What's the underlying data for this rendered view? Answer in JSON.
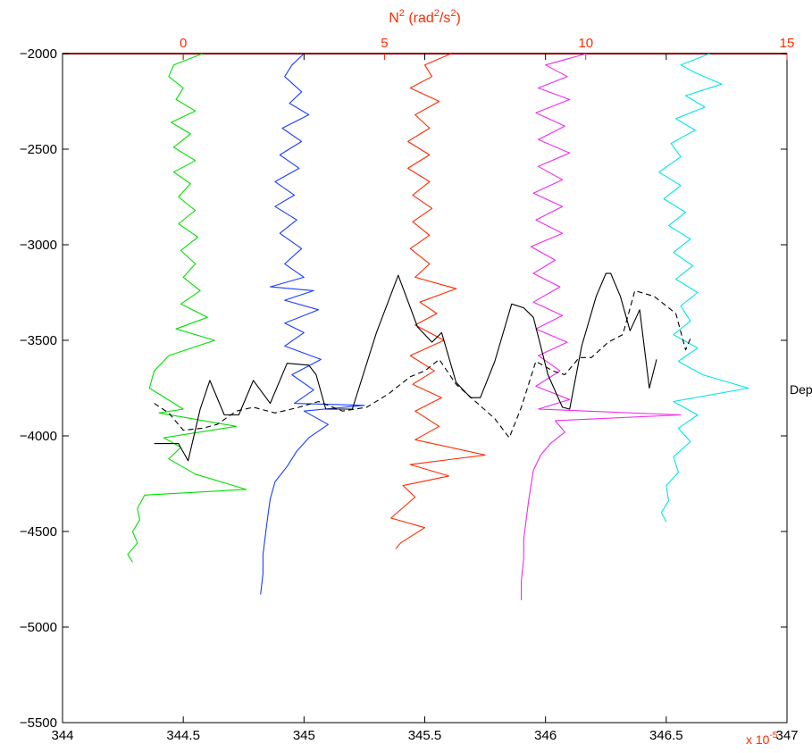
{
  "chart_data": {
    "type": "line",
    "top_axis": {
      "title_main": "N",
      "title_sup1": "2",
      "title_mid": " (rad",
      "title_sup2": "2",
      "title_mid2": "/s",
      "title_sup3": "2",
      "title_end": ")",
      "range": [
        -3,
        15
      ],
      "ticks": [
        0,
        5,
        10,
        15
      ],
      "tick_labels": [
        "0",
        "5",
        "10",
        "15"
      ],
      "color": "#ff2a00"
    },
    "bottom_axis": {
      "range": [
        344,
        347
      ],
      "ticks": [
        344,
        344.5,
        345,
        345.5,
        346,
        346.5,
        347
      ],
      "tick_labels": [
        "344",
        "344.5",
        "345",
        "345.5",
        "346",
        "346.5",
        "347"
      ],
      "exponent_label": "x 10",
      "exponent_sup": "-5",
      "exponent_color": "#ff2a00"
    },
    "left_axis": {
      "range": [
        -5500,
        -2000
      ],
      "ticks": [
        -5500,
        -5000,
        -4500,
        -4000,
        -3500,
        -3000,
        -2500,
        -2000
      ],
      "tick_labels": [
        "−5500",
        "−5000",
        "−4500",
        "−4000",
        "−3500",
        "−3000",
        "−2500",
        "−2000"
      ]
    },
    "right_axis": {
      "label": "Depth(m)"
    },
    "grid": false,
    "series": [
      {
        "color": "#00e000",
        "style": "solid",
        "points": [
          [
            344.58,
            -2000
          ],
          [
            344.46,
            -2060
          ],
          [
            344.44,
            -2120
          ],
          [
            344.5,
            -2180
          ],
          [
            344.47,
            -2240
          ],
          [
            344.55,
            -2300
          ],
          [
            344.45,
            -2360
          ],
          [
            344.53,
            -2420
          ],
          [
            344.46,
            -2490
          ],
          [
            344.55,
            -2560
          ],
          [
            344.46,
            -2620
          ],
          [
            344.53,
            -2680
          ],
          [
            344.48,
            -2750
          ],
          [
            344.55,
            -2820
          ],
          [
            344.48,
            -2890
          ],
          [
            344.56,
            -2960
          ],
          [
            344.49,
            -3030
          ],
          [
            344.55,
            -3100
          ],
          [
            344.5,
            -3170
          ],
          [
            344.57,
            -3240
          ],
          [
            344.49,
            -3310
          ],
          [
            344.6,
            -3380
          ],
          [
            344.47,
            -3440
          ],
          [
            344.63,
            -3500
          ],
          [
            344.44,
            -3580
          ],
          [
            344.38,
            -3660
          ],
          [
            344.36,
            -3750
          ],
          [
            344.5,
            -3860
          ],
          [
            344.4,
            -3880
          ],
          [
            344.72,
            -3950
          ],
          [
            344.42,
            -4010
          ],
          [
            344.49,
            -4060
          ],
          [
            344.44,
            -4120
          ],
          [
            344.55,
            -4200
          ],
          [
            344.76,
            -4280
          ],
          [
            344.34,
            -4310
          ],
          [
            344.31,
            -4380
          ],
          [
            344.32,
            -4440
          ],
          [
            344.29,
            -4500
          ],
          [
            344.31,
            -4560
          ],
          [
            344.27,
            -4620
          ],
          [
            344.29,
            -4660
          ]
        ]
      },
      {
        "color": "#1a3dff",
        "style": "solid",
        "points": [
          [
            345.0,
            -2000
          ],
          [
            344.95,
            -2060
          ],
          [
            344.92,
            -2120
          ],
          [
            344.99,
            -2200
          ],
          [
            344.94,
            -2260
          ],
          [
            345.02,
            -2320
          ],
          [
            344.91,
            -2390
          ],
          [
            344.99,
            -2460
          ],
          [
            344.9,
            -2530
          ],
          [
            344.98,
            -2600
          ],
          [
            344.88,
            -2670
          ],
          [
            344.96,
            -2740
          ],
          [
            344.88,
            -2800
          ],
          [
            344.97,
            -2870
          ],
          [
            344.9,
            -2940
          ],
          [
            344.99,
            -3020
          ],
          [
            344.92,
            -3100
          ],
          [
            345.0,
            -3170
          ],
          [
            344.86,
            -3220
          ],
          [
            345.04,
            -3240
          ],
          [
            344.92,
            -3290
          ],
          [
            345.06,
            -3340
          ],
          [
            344.92,
            -3410
          ],
          [
            345.0,
            -3460
          ],
          [
            344.92,
            -3530
          ],
          [
            345.07,
            -3600
          ],
          [
            344.95,
            -3680
          ],
          [
            345.04,
            -3760
          ],
          [
            344.96,
            -3830
          ],
          [
            345.25,
            -3840
          ],
          [
            345.0,
            -3870
          ],
          [
            345.1,
            -3940
          ],
          [
            345.02,
            -4010
          ],
          [
            344.97,
            -4080
          ],
          [
            344.93,
            -4160
          ],
          [
            344.88,
            -4240
          ],
          [
            344.86,
            -4330
          ],
          [
            344.85,
            -4420
          ],
          [
            344.84,
            -4520
          ],
          [
            344.83,
            -4620
          ],
          [
            344.83,
            -4720
          ],
          [
            344.82,
            -4830
          ]
        ]
      },
      {
        "color": "#ff2a00",
        "style": "solid",
        "points": [
          [
            345.61,
            -2000
          ],
          [
            345.5,
            -2060
          ],
          [
            345.53,
            -2120
          ],
          [
            345.44,
            -2180
          ],
          [
            345.56,
            -2250
          ],
          [
            345.46,
            -2320
          ],
          [
            345.52,
            -2390
          ],
          [
            345.43,
            -2460
          ],
          [
            345.52,
            -2530
          ],
          [
            345.43,
            -2600
          ],
          [
            345.52,
            -2670
          ],
          [
            345.45,
            -2740
          ],
          [
            345.53,
            -2810
          ],
          [
            345.45,
            -2880
          ],
          [
            345.52,
            -2950
          ],
          [
            345.44,
            -3020
          ],
          [
            345.52,
            -3100
          ],
          [
            345.46,
            -3170
          ],
          [
            345.63,
            -3230
          ],
          [
            345.48,
            -3300
          ],
          [
            345.55,
            -3360
          ],
          [
            345.46,
            -3420
          ],
          [
            345.58,
            -3500
          ],
          [
            345.44,
            -3580
          ],
          [
            345.54,
            -3660
          ],
          [
            345.45,
            -3730
          ],
          [
            345.57,
            -3800
          ],
          [
            345.46,
            -3870
          ],
          [
            345.56,
            -3950
          ],
          [
            345.46,
            -4020
          ],
          [
            345.75,
            -4100
          ],
          [
            345.44,
            -4150
          ],
          [
            345.6,
            -4210
          ],
          [
            345.41,
            -4260
          ],
          [
            345.46,
            -4320
          ],
          [
            345.36,
            -4430
          ],
          [
            345.5,
            -4480
          ],
          [
            345.4,
            -4560
          ],
          [
            345.38,
            -4590
          ]
        ]
      },
      {
        "color": "#ee2aee",
        "style": "solid",
        "points": [
          [
            346.17,
            -2000
          ],
          [
            346.0,
            -2060
          ],
          [
            346.09,
            -2120
          ],
          [
            345.97,
            -2180
          ],
          [
            346.1,
            -2240
          ],
          [
            345.96,
            -2310
          ],
          [
            346.08,
            -2380
          ],
          [
            345.97,
            -2450
          ],
          [
            346.1,
            -2520
          ],
          [
            345.97,
            -2590
          ],
          [
            346.07,
            -2660
          ],
          [
            345.95,
            -2730
          ],
          [
            346.07,
            -2800
          ],
          [
            345.96,
            -2870
          ],
          [
            346.07,
            -2940
          ],
          [
            345.94,
            -3010
          ],
          [
            346.04,
            -3080
          ],
          [
            345.95,
            -3150
          ],
          [
            346.06,
            -3220
          ],
          [
            345.95,
            -3300
          ],
          [
            346.07,
            -3370
          ],
          [
            345.96,
            -3440
          ],
          [
            346.09,
            -3510
          ],
          [
            345.97,
            -3580
          ],
          [
            346.06,
            -3660
          ],
          [
            345.96,
            -3740
          ],
          [
            346.1,
            -3810
          ],
          [
            345.97,
            -3860
          ],
          [
            346.56,
            -3890
          ],
          [
            346.04,
            -3920
          ],
          [
            346.08,
            -3980
          ],
          [
            346.02,
            -4040
          ],
          [
            345.98,
            -4100
          ],
          [
            345.95,
            -4180
          ],
          [
            345.94,
            -4260
          ],
          [
            345.93,
            -4340
          ],
          [
            345.92,
            -4440
          ],
          [
            345.91,
            -4540
          ],
          [
            345.91,
            -4640
          ],
          [
            345.9,
            -4760
          ],
          [
            345.9,
            -4860
          ]
        ]
      },
      {
        "color": "#00e5e5",
        "style": "solid",
        "points": [
          [
            346.68,
            -2000
          ],
          [
            346.56,
            -2060
          ],
          [
            346.62,
            -2100
          ],
          [
            346.73,
            -2160
          ],
          [
            346.58,
            -2220
          ],
          [
            346.66,
            -2280
          ],
          [
            346.54,
            -2340
          ],
          [
            346.62,
            -2400
          ],
          [
            346.52,
            -2470
          ],
          [
            346.56,
            -2540
          ],
          [
            346.47,
            -2620
          ],
          [
            346.56,
            -2690
          ],
          [
            346.49,
            -2760
          ],
          [
            346.58,
            -2830
          ],
          [
            346.51,
            -2900
          ],
          [
            346.6,
            -2970
          ],
          [
            346.53,
            -3040
          ],
          [
            346.61,
            -3110
          ],
          [
            346.54,
            -3180
          ],
          [
            346.63,
            -3250
          ],
          [
            346.56,
            -3320
          ],
          [
            346.6,
            -3400
          ],
          [
            346.53,
            -3470
          ],
          [
            346.63,
            -3540
          ],
          [
            346.55,
            -3610
          ],
          [
            346.65,
            -3680
          ],
          [
            346.84,
            -3750
          ],
          [
            346.53,
            -3820
          ],
          [
            346.63,
            -3890
          ],
          [
            346.55,
            -3960
          ],
          [
            346.6,
            -4030
          ],
          [
            346.53,
            -4110
          ],
          [
            346.55,
            -4190
          ],
          [
            346.5,
            -4260
          ],
          [
            346.51,
            -4340
          ],
          [
            346.48,
            -4400
          ],
          [
            346.5,
            -4450
          ]
        ]
      },
      {
        "color": "#000000",
        "style": "solid",
        "points": [
          [
            344.38,
            -4040
          ],
          [
            344.48,
            -4040
          ],
          [
            344.52,
            -4130
          ],
          [
            344.57,
            -3860
          ],
          [
            344.61,
            -3710
          ],
          [
            344.67,
            -3890
          ],
          [
            344.73,
            -3890
          ],
          [
            344.79,
            -3710
          ],
          [
            344.86,
            -3830
          ],
          [
            344.93,
            -3620
          ],
          [
            345.02,
            -3630
          ],
          [
            345.05,
            -3680
          ],
          [
            345.09,
            -3860
          ],
          [
            345.2,
            -3860
          ],
          [
            345.3,
            -3460
          ],
          [
            345.39,
            -3160
          ],
          [
            345.47,
            -3430
          ],
          [
            345.53,
            -3510
          ],
          [
            345.57,
            -3460
          ],
          [
            345.63,
            -3720
          ],
          [
            345.69,
            -3800
          ],
          [
            345.73,
            -3800
          ],
          [
            345.79,
            -3610
          ],
          [
            345.86,
            -3310
          ],
          [
            345.91,
            -3330
          ],
          [
            345.95,
            -3380
          ],
          [
            346.01,
            -3680
          ],
          [
            346.07,
            -3850
          ],
          [
            346.1,
            -3860
          ],
          [
            346.15,
            -3530
          ],
          [
            346.21,
            -3270
          ],
          [
            346.25,
            -3150
          ],
          [
            346.27,
            -3150
          ],
          [
            346.31,
            -3270
          ],
          [
            346.35,
            -3450
          ],
          [
            346.39,
            -3340
          ],
          [
            346.43,
            -3750
          ],
          [
            346.46,
            -3600
          ]
        ]
      },
      {
        "color": "#000000",
        "style": "dashed",
        "points": [
          [
            344.38,
            -3830
          ],
          [
            344.44,
            -3880
          ],
          [
            344.5,
            -3970
          ],
          [
            344.58,
            -3960
          ],
          [
            344.64,
            -3940
          ],
          [
            344.72,
            -3870
          ],
          [
            344.79,
            -3850
          ],
          [
            344.88,
            -3880
          ],
          [
            344.98,
            -3850
          ],
          [
            345.06,
            -3820
          ],
          [
            345.16,
            -3870
          ],
          [
            345.26,
            -3850
          ],
          [
            345.35,
            -3780
          ],
          [
            345.44,
            -3690
          ],
          [
            345.5,
            -3660
          ],
          [
            345.56,
            -3600
          ],
          [
            345.63,
            -3730
          ],
          [
            345.71,
            -3820
          ],
          [
            345.79,
            -3910
          ],
          [
            345.85,
            -4010
          ],
          [
            345.9,
            -3850
          ],
          [
            345.96,
            -3610
          ],
          [
            346.03,
            -3660
          ],
          [
            346.08,
            -3680
          ],
          [
            346.14,
            -3590
          ],
          [
            346.19,
            -3590
          ],
          [
            346.26,
            -3510
          ],
          [
            346.32,
            -3470
          ],
          [
            346.37,
            -3240
          ],
          [
            346.45,
            -3270
          ],
          [
            346.54,
            -3360
          ],
          [
            346.58,
            -3550
          ],
          [
            346.6,
            -3490
          ]
        ]
      }
    ]
  }
}
